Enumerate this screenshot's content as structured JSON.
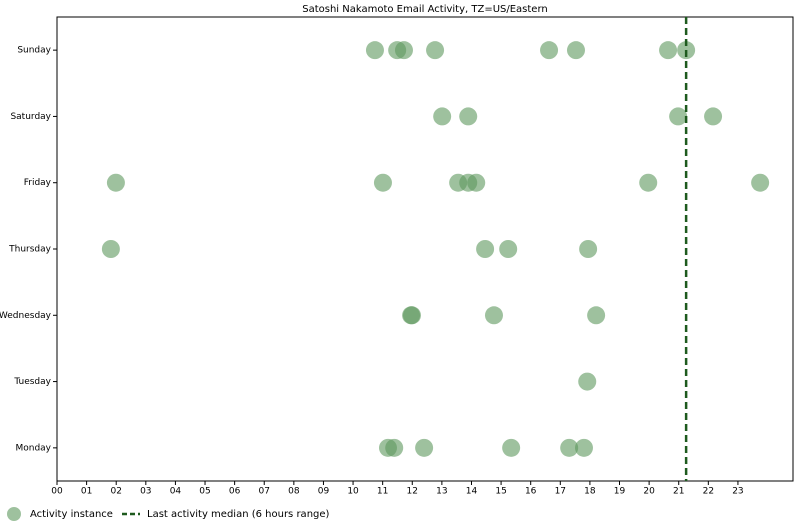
{
  "chart_data": {
    "type": "scatter",
    "title": "Satoshi Nakamoto Email Activity, TZ=US/Eastern",
    "categories": [
      "Monday",
      "Tuesday",
      "Wednesday",
      "Thursday",
      "Friday",
      "Saturday",
      "Sunday"
    ],
    "series": [
      {
        "name": "Activity instance",
        "color": "#5e985e",
        "x": [
          10.74,
          11.49,
          11.72,
          12.77,
          16.62,
          17.53,
          20.64,
          21.25,
          13.01,
          13.89,
          20.98,
          22.16,
          1.99,
          11.01,
          13.55,
          13.89,
          14.16,
          19.97,
          23.75,
          1.82,
          14.46,
          15.24,
          17.94,
          11.96,
          11.99,
          14.76,
          18.21,
          17.91,
          11.18,
          11.39,
          12.4,
          15.34,
          17.3,
          17.8
        ],
        "y": [
          "Sunday",
          "Sunday",
          "Sunday",
          "Sunday",
          "Sunday",
          "Sunday",
          "Sunday",
          "Sunday",
          "Saturday",
          "Saturday",
          "Saturday",
          "Saturday",
          "Friday",
          "Friday",
          "Friday",
          "Friday",
          "Friday",
          "Friday",
          "Friday",
          "Thursday",
          "Thursday",
          "Thursday",
          "Thursday",
          "Wednesday",
          "Wednesday",
          "Wednesday",
          "Wednesday",
          "Tuesday",
          "Monday",
          "Monday",
          "Monday",
          "Monday",
          "Monday",
          "Monday"
        ]
      }
    ],
    "median": {
      "name": "Last activity median (6 hours range)",
      "value": 21.25,
      "color": "#1e5a1e"
    },
    "xlim": [
      0,
      24.86
    ],
    "xticks": [
      {
        "value": 0,
        "label": "00"
      },
      {
        "value": 1,
        "label": "01"
      },
      {
        "value": 2,
        "label": "02"
      },
      {
        "value": 3,
        "label": "03"
      },
      {
        "value": 4,
        "label": "04"
      },
      {
        "value": 5,
        "label": "05"
      },
      {
        "value": 6,
        "label": "06"
      },
      {
        "value": 7,
        "label": "07"
      },
      {
        "value": 8,
        "label": "08"
      },
      {
        "value": 9,
        "label": "09"
      },
      {
        "value": 10,
        "label": "10"
      },
      {
        "value": 11,
        "label": "11"
      },
      {
        "value": 12,
        "label": "12"
      },
      {
        "value": 13,
        "label": "13"
      },
      {
        "value": 14,
        "label": "14"
      },
      {
        "value": 15,
        "label": "15"
      },
      {
        "value": 16,
        "label": "16"
      },
      {
        "value": 17,
        "label": "17"
      },
      {
        "value": 18,
        "label": "18"
      },
      {
        "value": 19,
        "label": "19"
      },
      {
        "value": 20,
        "label": "20"
      },
      {
        "value": 21,
        "label": "21"
      },
      {
        "value": 22,
        "label": "22"
      },
      {
        "value": 23,
        "label": "23"
      }
    ],
    "legend": "bottom-left"
  }
}
